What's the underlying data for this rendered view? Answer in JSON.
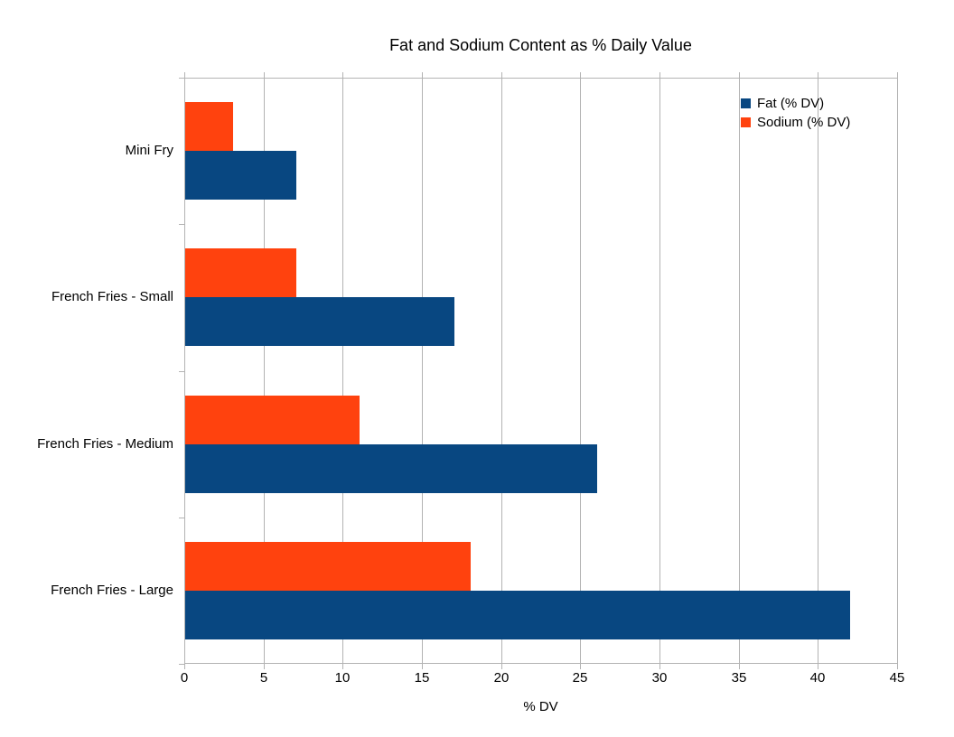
{
  "chart_data": {
    "type": "bar",
    "orientation": "horizontal",
    "title": "Fat and Sodium Content as % Daily Value",
    "xlabel": "% DV",
    "xlim": [
      0,
      45
    ],
    "xticks": [
      0,
      5,
      10,
      15,
      20,
      25,
      30,
      35,
      40,
      45
    ],
    "grid": true,
    "legend_position": "top-right",
    "categories": [
      "Mini Fry",
      "French Fries - Small",
      "French Fries - Medium",
      "French Fries - Large"
    ],
    "series": [
      {
        "name": "Fat (% DV)",
        "key": "fat",
        "color": "#084781",
        "values": [
          7,
          17,
          26,
          42
        ]
      },
      {
        "name": "Sodium (% DV)",
        "key": "sodium",
        "color": "#ff420e",
        "values": [
          3,
          7,
          11,
          18
        ]
      }
    ],
    "colors": {
      "gridline": "#b3b3b3",
      "text": "#000000",
      "background": "#ffffff"
    }
  }
}
